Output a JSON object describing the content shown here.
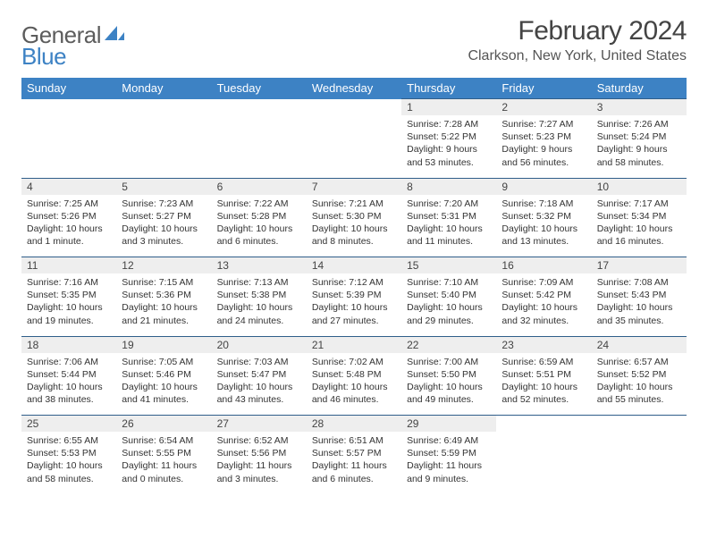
{
  "brand": {
    "word1": "General",
    "word2": "Blue"
  },
  "title": "February 2024",
  "location": "Clarkson, New York, United States",
  "colors": {
    "header_bg": "#3d82c4",
    "daynum_bg": "#eeeeee",
    "rule": "#2f5e8a"
  },
  "day_headers": [
    "Sunday",
    "Monday",
    "Tuesday",
    "Wednesday",
    "Thursday",
    "Friday",
    "Saturday"
  ],
  "weeks": [
    [
      null,
      null,
      null,
      null,
      {
        "n": "1",
        "sr": "Sunrise: 7:28 AM",
        "ss": "Sunset: 5:22 PM",
        "dl1": "Daylight: 9 hours",
        "dl2": "and 53 minutes."
      },
      {
        "n": "2",
        "sr": "Sunrise: 7:27 AM",
        "ss": "Sunset: 5:23 PM",
        "dl1": "Daylight: 9 hours",
        "dl2": "and 56 minutes."
      },
      {
        "n": "3",
        "sr": "Sunrise: 7:26 AM",
        "ss": "Sunset: 5:24 PM",
        "dl1": "Daylight: 9 hours",
        "dl2": "and 58 minutes."
      }
    ],
    [
      {
        "n": "4",
        "sr": "Sunrise: 7:25 AM",
        "ss": "Sunset: 5:26 PM",
        "dl1": "Daylight: 10 hours",
        "dl2": "and 1 minute."
      },
      {
        "n": "5",
        "sr": "Sunrise: 7:23 AM",
        "ss": "Sunset: 5:27 PM",
        "dl1": "Daylight: 10 hours",
        "dl2": "and 3 minutes."
      },
      {
        "n": "6",
        "sr": "Sunrise: 7:22 AM",
        "ss": "Sunset: 5:28 PM",
        "dl1": "Daylight: 10 hours",
        "dl2": "and 6 minutes."
      },
      {
        "n": "7",
        "sr": "Sunrise: 7:21 AM",
        "ss": "Sunset: 5:30 PM",
        "dl1": "Daylight: 10 hours",
        "dl2": "and 8 minutes."
      },
      {
        "n": "8",
        "sr": "Sunrise: 7:20 AM",
        "ss": "Sunset: 5:31 PM",
        "dl1": "Daylight: 10 hours",
        "dl2": "and 11 minutes."
      },
      {
        "n": "9",
        "sr": "Sunrise: 7:18 AM",
        "ss": "Sunset: 5:32 PM",
        "dl1": "Daylight: 10 hours",
        "dl2": "and 13 minutes."
      },
      {
        "n": "10",
        "sr": "Sunrise: 7:17 AM",
        "ss": "Sunset: 5:34 PM",
        "dl1": "Daylight: 10 hours",
        "dl2": "and 16 minutes."
      }
    ],
    [
      {
        "n": "11",
        "sr": "Sunrise: 7:16 AM",
        "ss": "Sunset: 5:35 PM",
        "dl1": "Daylight: 10 hours",
        "dl2": "and 19 minutes."
      },
      {
        "n": "12",
        "sr": "Sunrise: 7:15 AM",
        "ss": "Sunset: 5:36 PM",
        "dl1": "Daylight: 10 hours",
        "dl2": "and 21 minutes."
      },
      {
        "n": "13",
        "sr": "Sunrise: 7:13 AM",
        "ss": "Sunset: 5:38 PM",
        "dl1": "Daylight: 10 hours",
        "dl2": "and 24 minutes."
      },
      {
        "n": "14",
        "sr": "Sunrise: 7:12 AM",
        "ss": "Sunset: 5:39 PM",
        "dl1": "Daylight: 10 hours",
        "dl2": "and 27 minutes."
      },
      {
        "n": "15",
        "sr": "Sunrise: 7:10 AM",
        "ss": "Sunset: 5:40 PM",
        "dl1": "Daylight: 10 hours",
        "dl2": "and 29 minutes."
      },
      {
        "n": "16",
        "sr": "Sunrise: 7:09 AM",
        "ss": "Sunset: 5:42 PM",
        "dl1": "Daylight: 10 hours",
        "dl2": "and 32 minutes."
      },
      {
        "n": "17",
        "sr": "Sunrise: 7:08 AM",
        "ss": "Sunset: 5:43 PM",
        "dl1": "Daylight: 10 hours",
        "dl2": "and 35 minutes."
      }
    ],
    [
      {
        "n": "18",
        "sr": "Sunrise: 7:06 AM",
        "ss": "Sunset: 5:44 PM",
        "dl1": "Daylight: 10 hours",
        "dl2": "and 38 minutes."
      },
      {
        "n": "19",
        "sr": "Sunrise: 7:05 AM",
        "ss": "Sunset: 5:46 PM",
        "dl1": "Daylight: 10 hours",
        "dl2": "and 41 minutes."
      },
      {
        "n": "20",
        "sr": "Sunrise: 7:03 AM",
        "ss": "Sunset: 5:47 PM",
        "dl1": "Daylight: 10 hours",
        "dl2": "and 43 minutes."
      },
      {
        "n": "21",
        "sr": "Sunrise: 7:02 AM",
        "ss": "Sunset: 5:48 PM",
        "dl1": "Daylight: 10 hours",
        "dl2": "and 46 minutes."
      },
      {
        "n": "22",
        "sr": "Sunrise: 7:00 AM",
        "ss": "Sunset: 5:50 PM",
        "dl1": "Daylight: 10 hours",
        "dl2": "and 49 minutes."
      },
      {
        "n": "23",
        "sr": "Sunrise: 6:59 AM",
        "ss": "Sunset: 5:51 PM",
        "dl1": "Daylight: 10 hours",
        "dl2": "and 52 minutes."
      },
      {
        "n": "24",
        "sr": "Sunrise: 6:57 AM",
        "ss": "Sunset: 5:52 PM",
        "dl1": "Daylight: 10 hours",
        "dl2": "and 55 minutes."
      }
    ],
    [
      {
        "n": "25",
        "sr": "Sunrise: 6:55 AM",
        "ss": "Sunset: 5:53 PM",
        "dl1": "Daylight: 10 hours",
        "dl2": "and 58 minutes."
      },
      {
        "n": "26",
        "sr": "Sunrise: 6:54 AM",
        "ss": "Sunset: 5:55 PM",
        "dl1": "Daylight: 11 hours",
        "dl2": "and 0 minutes."
      },
      {
        "n": "27",
        "sr": "Sunrise: 6:52 AM",
        "ss": "Sunset: 5:56 PM",
        "dl1": "Daylight: 11 hours",
        "dl2": "and 3 minutes."
      },
      {
        "n": "28",
        "sr": "Sunrise: 6:51 AM",
        "ss": "Sunset: 5:57 PM",
        "dl1": "Daylight: 11 hours",
        "dl2": "and 6 minutes."
      },
      {
        "n": "29",
        "sr": "Sunrise: 6:49 AM",
        "ss": "Sunset: 5:59 PM",
        "dl1": "Daylight: 11 hours",
        "dl2": "and 9 minutes."
      },
      null,
      null
    ]
  ]
}
